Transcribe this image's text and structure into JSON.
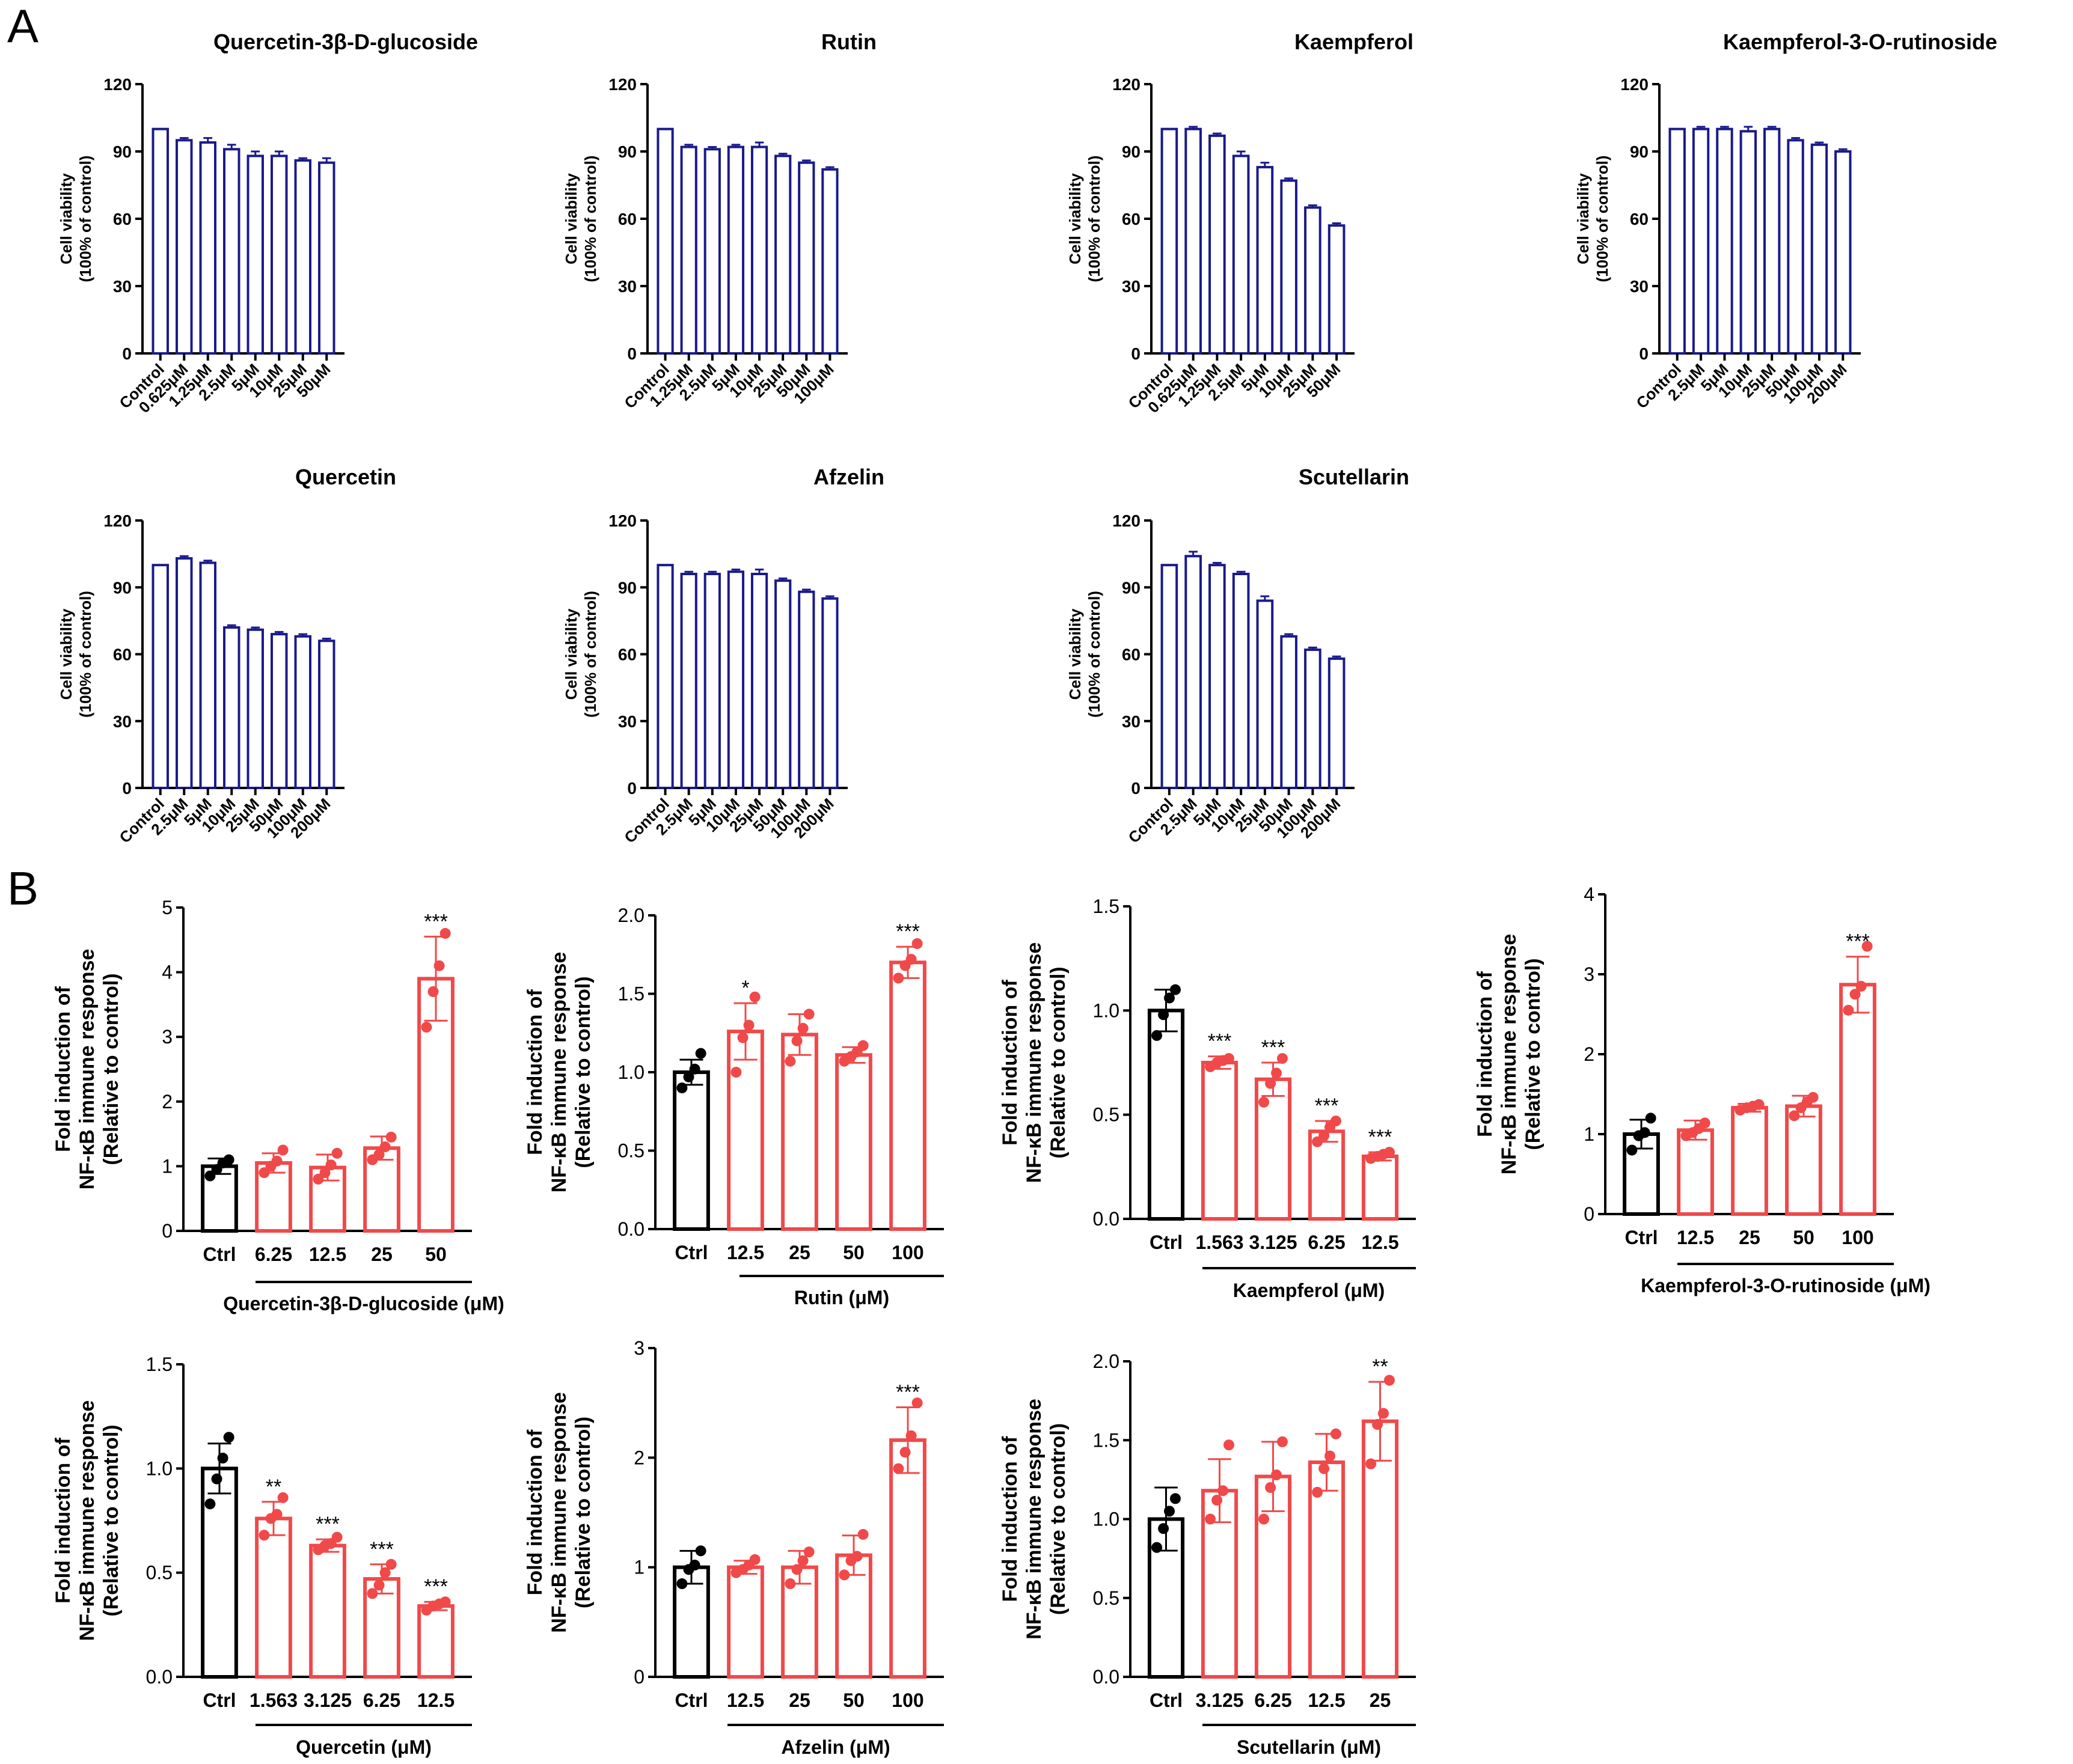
{
  "panel_labels": {
    "a": "A",
    "b": "B"
  },
  "colors": {
    "viability": "#1a1a8c",
    "control": "#000000",
    "treatment": "#f0494a",
    "text": "#000000"
  },
  "chart_data": [
    {
      "panel": "A",
      "type": "bar",
      "title": "Quercetin-3β-D-glucoside",
      "ylabel": "Cell viability",
      "ylabel2": "(100% of control)",
      "ylim": [
        0,
        120
      ],
      "yticks": [
        0,
        30,
        60,
        90,
        120
      ],
      "categories": [
        "Control",
        "0.625μM",
        "1.25μM",
        "2.5μM",
        "5μM",
        "10μM",
        "25μM",
        "50μM"
      ],
      "values": [
        100,
        95,
        94,
        91,
        88,
        88,
        86,
        85
      ],
      "errors": [
        0,
        1,
        2,
        2,
        2,
        2,
        1,
        2
      ]
    },
    {
      "panel": "A",
      "type": "bar",
      "title": "Rutin",
      "ylabel": "Cell viability",
      "ylabel2": "(100% of control)",
      "ylim": [
        0,
        120
      ],
      "yticks": [
        0,
        30,
        60,
        90,
        120
      ],
      "categories": [
        "Control",
        "1.25μM",
        "2.5μM",
        "5μM",
        "10μM",
        "25μM",
        "50μM",
        "100μM"
      ],
      "values": [
        100,
        92,
        91,
        92,
        92,
        88,
        85,
        82
      ],
      "errors": [
        0,
        1,
        1,
        1,
        2,
        1,
        1,
        1
      ]
    },
    {
      "panel": "A",
      "type": "bar",
      "title": "Kaempferol",
      "ylabel": "Cell viability",
      "ylabel2": "(100% of control)",
      "ylim": [
        0,
        120
      ],
      "yticks": [
        0,
        30,
        60,
        90,
        120
      ],
      "categories": [
        "Control",
        "0.625μM",
        "1.25μM",
        "2.5μM",
        "5μM",
        "10μM",
        "25μM",
        "50μM"
      ],
      "values": [
        100,
        100,
        97,
        88,
        83,
        77,
        65,
        57
      ],
      "errors": [
        0,
        1,
        1,
        2,
        2,
        1,
        1,
        1
      ]
    },
    {
      "panel": "A",
      "type": "bar",
      "title": "Kaempferol-3-O-rutinoside",
      "ylabel": "Cell viability",
      "ylabel2": "(100% of control)",
      "ylim": [
        0,
        120
      ],
      "yticks": [
        0,
        30,
        60,
        90,
        120
      ],
      "categories": [
        "Control",
        "2.5μM",
        "5μM",
        "10μM",
        "25μM",
        "50μM",
        "100μM",
        "200μM"
      ],
      "values": [
        100,
        100,
        100,
        99,
        100,
        95,
        93,
        90
      ],
      "errors": [
        0,
        1,
        1,
        2,
        1,
        1,
        1,
        1
      ]
    },
    {
      "panel": "A",
      "type": "bar",
      "title": "Quercetin",
      "ylabel": "Cell viability",
      "ylabel2": "(100% of control)",
      "ylim": [
        0,
        120
      ],
      "yticks": [
        0,
        30,
        60,
        90,
        120
      ],
      "categories": [
        "Control",
        "2.5μM",
        "5μM",
        "10μM",
        "25μM",
        "50μM",
        "100μM",
        "200μM"
      ],
      "values": [
        100,
        103,
        101,
        72,
        71,
        69,
        68,
        66
      ],
      "errors": [
        0,
        1,
        1,
        1,
        1,
        1,
        1,
        1
      ]
    },
    {
      "panel": "A",
      "type": "bar",
      "title": "Afzelin",
      "ylabel": "Cell viability",
      "ylabel2": "(100% of control)",
      "ylim": [
        0,
        120
      ],
      "yticks": [
        0,
        30,
        60,
        90,
        120
      ],
      "categories": [
        "Control",
        "2.5μM",
        "5μM",
        "10μM",
        "25μM",
        "50μM",
        "100μM",
        "200μM"
      ],
      "values": [
        100,
        96,
        96,
        97,
        96,
        93,
        88,
        85
      ],
      "errors": [
        0,
        1,
        1,
        1,
        2,
        1,
        1,
        1
      ]
    },
    {
      "panel": "A",
      "type": "bar",
      "title": "Scutellarin",
      "ylabel": "Cell viability",
      "ylabel2": "(100% of control)",
      "ylim": [
        0,
        120
      ],
      "yticks": [
        0,
        30,
        60,
        90,
        120
      ],
      "categories": [
        "Control",
        "2.5μM",
        "5μM",
        "10μM",
        "25μM",
        "50μM",
        "100μM",
        "200μM"
      ],
      "values": [
        100,
        104,
        100,
        96,
        84,
        68,
        62,
        58
      ],
      "errors": [
        0,
        2,
        1,
        1,
        2,
        1,
        1,
        1
      ]
    },
    {
      "panel": "B",
      "type": "bar",
      "xlabel": "Quercetin-3β-D-glucoside (μM)",
      "ylabel": "Fold induction of",
      "ylabel2": "NF-κB immune response",
      "ylabel3": "(Relative to control)",
      "ylim": [
        0,
        5
      ],
      "yticks": [
        "0",
        "1",
        "2",
        "3",
        "4",
        "5"
      ],
      "categories": [
        "Ctrl",
        "6.25",
        "12.5",
        "25",
        "50"
      ],
      "values": [
        1.0,
        1.05,
        0.98,
        1.28,
        3.9
      ],
      "errors": [
        0.12,
        0.15,
        0.2,
        0.18,
        0.65
      ],
      "points": [
        [
          0.85,
          0.95,
          1.05,
          1.1
        ],
        [
          0.9,
          1.0,
          1.08,
          1.25
        ],
        [
          0.8,
          0.9,
          1.02,
          1.2
        ],
        [
          1.1,
          1.18,
          1.3,
          1.45
        ],
        [
          3.15,
          3.7,
          4.1,
          4.6
        ]
      ],
      "significance": [
        "",
        "",
        "",
        "",
        "***"
      ]
    },
    {
      "panel": "B",
      "type": "bar",
      "xlabel": "Rutin (μM)",
      "ylabel": "Fold induction of",
      "ylabel2": "NF-κB immune response",
      "ylabel3": "(Relative to control)",
      "ylim": [
        0,
        2
      ],
      "yticks": [
        "0.0",
        "0.5",
        "1.0",
        "1.5",
        "2.0"
      ],
      "categories": [
        "Ctrl",
        "12.5",
        "25",
        "50",
        "100"
      ],
      "values": [
        1.0,
        1.26,
        1.24,
        1.11,
        1.7
      ],
      "errors": [
        0.08,
        0.18,
        0.13,
        0.05,
        0.1
      ],
      "points": [
        [
          0.9,
          0.97,
          1.02,
          1.12
        ],
        [
          1.0,
          1.22,
          1.3,
          1.48
        ],
        [
          1.07,
          1.2,
          1.28,
          1.37
        ],
        [
          1.07,
          1.1,
          1.13,
          1.17
        ],
        [
          1.6,
          1.68,
          1.72,
          1.82
        ]
      ],
      "significance": [
        "",
        "*",
        "",
        "",
        "***"
      ]
    },
    {
      "panel": "B",
      "type": "bar",
      "xlabel": "Kaempferol (μM)",
      "ylabel": "Fold induction of",
      "ylabel2": "NF-κB immune response",
      "ylabel3": "(Relative to control)",
      "ylim": [
        0,
        1.5
      ],
      "yticks": [
        "0.0",
        "0.5",
        "1.0",
        "1.5"
      ],
      "categories": [
        "Ctrl",
        "1.563",
        "3.125",
        "6.25",
        "12.5"
      ],
      "values": [
        1.0,
        0.75,
        0.67,
        0.42,
        0.3
      ],
      "errors": [
        0.1,
        0.03,
        0.08,
        0.05,
        0.02
      ],
      "points": [
        [
          0.88,
          0.98,
          1.06,
          1.1
        ],
        [
          0.73,
          0.75,
          0.76,
          0.77
        ],
        [
          0.56,
          0.65,
          0.7,
          0.77
        ],
        [
          0.37,
          0.4,
          0.44,
          0.47
        ],
        [
          0.29,
          0.3,
          0.31,
          0.32
        ]
      ],
      "significance": [
        "",
        "***",
        "***",
        "***",
        "***"
      ]
    },
    {
      "panel": "B",
      "type": "bar",
      "xlabel": "Kaempferol-3-O-rutinoside (μM)",
      "ylabel": "Fold induction of",
      "ylabel2": "NF-κB immune response",
      "ylabel3": "(Relative to control)",
      "ylim": [
        0,
        4
      ],
      "yticks": [
        "0",
        "1",
        "2",
        "3",
        "4"
      ],
      "categories": [
        "Ctrl",
        "12.5",
        "25",
        "50",
        "100"
      ],
      "values": [
        1.0,
        1.05,
        1.33,
        1.35,
        2.87
      ],
      "errors": [
        0.18,
        0.12,
        0.05,
        0.13,
        0.35
      ],
      "points": [
        [
          0.8,
          0.98,
          1.02,
          1.2
        ],
        [
          0.98,
          1.02,
          1.07,
          1.14
        ],
        [
          1.3,
          1.33,
          1.35,
          1.37
        ],
        [
          1.23,
          1.33,
          1.4,
          1.46
        ],
        [
          2.55,
          2.75,
          2.85,
          3.35
        ]
      ],
      "significance": [
        "",
        "",
        "",
        "",
        "***"
      ]
    },
    {
      "panel": "B",
      "type": "bar",
      "xlabel": "Quercetin (μM)",
      "ylabel": "Fold induction of",
      "ylabel2": "NF-κB immune response",
      "ylabel3": "(Relative to control)",
      "ylim": [
        0,
        1.5
      ],
      "yticks": [
        "0.0",
        "0.5",
        "1.0",
        "1.5"
      ],
      "categories": [
        "Ctrl",
        "1.563",
        "3.125",
        "6.25",
        "12.5"
      ],
      "values": [
        1.0,
        0.76,
        0.63,
        0.47,
        0.34
      ],
      "errors": [
        0.12,
        0.08,
        0.03,
        0.07,
        0.02
      ],
      "points": [
        [
          0.83,
          0.95,
          1.05,
          1.15
        ],
        [
          0.68,
          0.76,
          0.78,
          0.86
        ],
        [
          0.61,
          0.63,
          0.64,
          0.67
        ],
        [
          0.4,
          0.44,
          0.5,
          0.54
        ],
        [
          0.32,
          0.34,
          0.35,
          0.36
        ]
      ],
      "significance": [
        "",
        "**",
        "***",
        "***",
        "***"
      ]
    },
    {
      "panel": "B",
      "type": "bar",
      "xlabel": "Afzelin (μM)",
      "ylabel": "Fold induction of",
      "ylabel2": "NF-κB immune response",
      "ylabel3": "(Relative to control)",
      "ylim": [
        0,
        3
      ],
      "yticks": [
        "0",
        "1",
        "2",
        "3"
      ],
      "categories": [
        "Ctrl",
        "12.5",
        "25",
        "50",
        "100"
      ],
      "values": [
        1.0,
        1.0,
        1.0,
        1.11,
        2.16
      ],
      "errors": [
        0.15,
        0.06,
        0.15,
        0.18,
        0.3
      ],
      "points": [
        [
          0.85,
          0.98,
          1.02,
          1.15
        ],
        [
          0.95,
          0.98,
          1.02,
          1.07
        ],
        [
          0.85,
          0.98,
          1.06,
          1.14
        ],
        [
          0.93,
          1.06,
          1.1,
          1.3
        ],
        [
          1.9,
          2.05,
          2.2,
          2.5
        ]
      ],
      "significance": [
        "",
        "",
        "",
        "",
        "***"
      ]
    },
    {
      "panel": "B",
      "type": "bar",
      "xlabel": "Scutellarin (μM)",
      "ylabel": "Fold induction of",
      "ylabel2": "NF-κB immune response",
      "ylabel3": "(Relative to control)",
      "ylim": [
        0,
        2
      ],
      "yticks": [
        "0.0",
        "0.5",
        "1.0",
        "1.5",
        "2.0"
      ],
      "categories": [
        "Ctrl",
        "3.125",
        "6.25",
        "12.5",
        "25"
      ],
      "values": [
        1.0,
        1.18,
        1.27,
        1.36,
        1.62
      ],
      "errors": [
        0.2,
        0.2,
        0.22,
        0.18,
        0.25
      ],
      "points": [
        [
          0.82,
          0.94,
          1.05,
          1.13
        ],
        [
          1.0,
          1.12,
          1.18,
          1.47
        ],
        [
          1.0,
          1.2,
          1.28,
          1.49
        ],
        [
          1.17,
          1.32,
          1.4,
          1.54
        ],
        [
          1.35,
          1.6,
          1.67,
          1.88
        ]
      ],
      "significance": [
        "",
        "",
        "",
        "",
        "**"
      ]
    }
  ]
}
